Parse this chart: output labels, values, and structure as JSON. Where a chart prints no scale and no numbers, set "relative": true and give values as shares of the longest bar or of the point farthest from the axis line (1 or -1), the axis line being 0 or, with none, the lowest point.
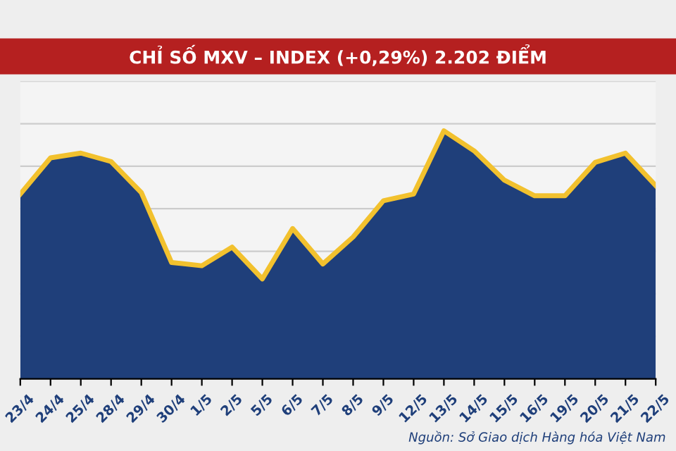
{
  "chart_data": {
    "type": "area",
    "title": "CHỈ SỐ MXV – INDEX (+0,29%) 2.202 ĐIỂM",
    "relative": true,
    "grid": "y",
    "marker": "none",
    "line_style": "solid",
    "categories": [
      "23/4",
      "24/4",
      "25/4",
      "28/4",
      "29/4",
      "30/4",
      "1/5",
      "2/5",
      "5/5",
      "6/5",
      "7/5",
      "8/5",
      "9/5",
      "12/5",
      "13/5",
      "14/5",
      "15/5",
      "16/5",
      "19/5",
      "20/5",
      "21/5",
      "22/5"
    ],
    "series": [
      {
        "color": "#1f3f7a",
        "values": [
          0.745,
          0.891,
          0.91,
          0.876,
          0.751,
          0.469,
          0.456,
          0.531,
          0.403,
          0.606,
          0.463,
          0.572,
          0.718,
          0.745,
          1,
          0.919,
          0.801,
          0.738,
          0.738,
          0.873,
          0.91,
          0.779
        ]
      },
      {
        "type": "line",
        "color": "#f2c12e",
        "values": [
          0.745,
          0.891,
          0.91,
          0.876,
          0.751,
          0.469,
          0.456,
          0.531,
          0.403,
          0.606,
          0.463,
          0.572,
          0.718,
          0.745,
          1,
          0.919,
          0.801,
          0.738,
          0.738,
          0.873,
          0.91,
          0.779
        ]
      }
    ],
    "annotations": [
      "Nguồn: Sở Giao dịch Hàng hóa Việt Nam"
    ]
  }
}
